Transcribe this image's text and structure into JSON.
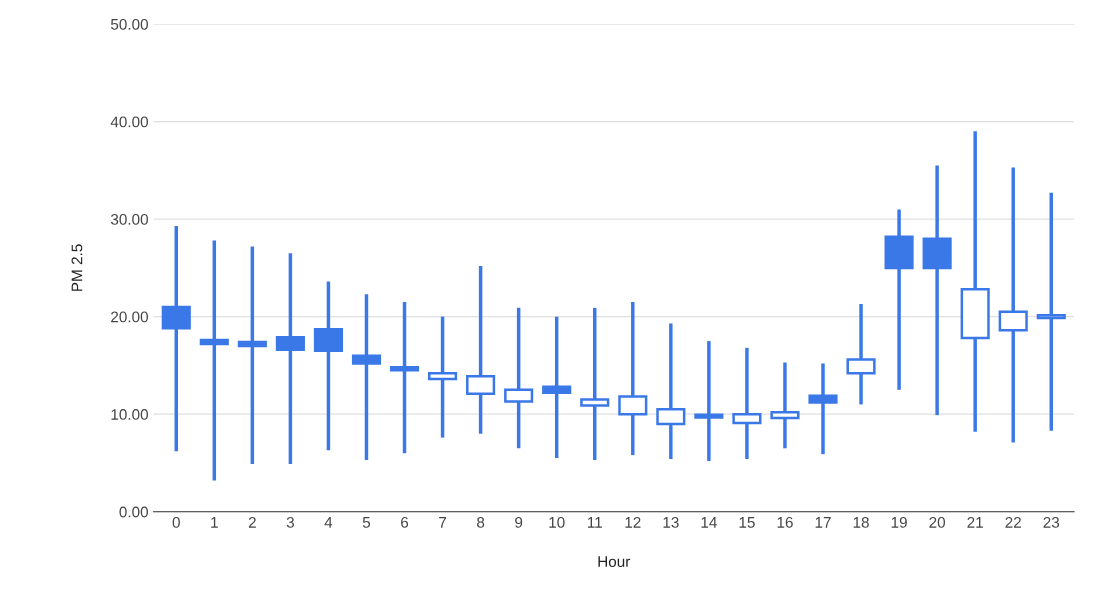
{
  "chart_data": {
    "type": "candlestick",
    "xlabel": "Hour",
    "ylabel": "PM 2.5",
    "categories": [
      "0",
      "1",
      "2",
      "3",
      "4",
      "5",
      "6",
      "7",
      "8",
      "9",
      "10",
      "11",
      "12",
      "13",
      "14",
      "15",
      "16",
      "17",
      "18",
      "19",
      "20",
      "21",
      "22",
      "23"
    ],
    "ohlc": [
      [
        21.0,
        29.3,
        6.2,
        18.8
      ],
      [
        17.6,
        27.8,
        3.2,
        17.2
      ],
      [
        17.4,
        27.2,
        4.9,
        17.0
      ],
      [
        17.9,
        26.5,
        4.9,
        16.6
      ],
      [
        18.7,
        23.6,
        6.3,
        16.5
      ],
      [
        16.0,
        22.3,
        5.3,
        15.2
      ],
      [
        14.8,
        21.5,
        6.0,
        14.5
      ],
      [
        13.6,
        20.0,
        7.6,
        14.2
      ],
      [
        12.1,
        25.2,
        8.0,
        13.9
      ],
      [
        11.3,
        20.9,
        6.5,
        12.5
      ],
      [
        12.8,
        20.0,
        5.5,
        12.2
      ],
      [
        10.9,
        20.9,
        5.3,
        11.5
      ],
      [
        10.0,
        21.5,
        5.8,
        11.8
      ],
      [
        9.0,
        19.3,
        5.4,
        10.5
      ],
      [
        10.1,
        17.5,
        5.2,
        9.8
      ],
      [
        9.1,
        16.8,
        5.4,
        10.0
      ],
      [
        9.6,
        15.3,
        6.5,
        10.2
      ],
      [
        11.9,
        15.2,
        5.9,
        11.2
      ],
      [
        14.2,
        21.3,
        11.0,
        15.6
      ],
      [
        28.2,
        31.0,
        12.5,
        25.0
      ],
      [
        28.0,
        35.5,
        9.9,
        25.0
      ],
      [
        17.8,
        39.0,
        8.2,
        22.8
      ],
      [
        18.6,
        35.3,
        7.1,
        20.5
      ],
      [
        20.0,
        32.7,
        8.3,
        20.0
      ]
    ],
    "color": "#3b78e7",
    "ylim": [
      0,
      50
    ],
    "yticks": [
      {
        "value": 0,
        "label": "0.00"
      },
      {
        "value": 10,
        "label": "10.00"
      },
      {
        "value": 20,
        "label": "20.00"
      },
      {
        "value": 30,
        "label": "30.00"
      },
      {
        "value": 40,
        "label": "40.00"
      },
      {
        "value": 50,
        "label": "50.00"
      }
    ],
    "grid": "y"
  }
}
